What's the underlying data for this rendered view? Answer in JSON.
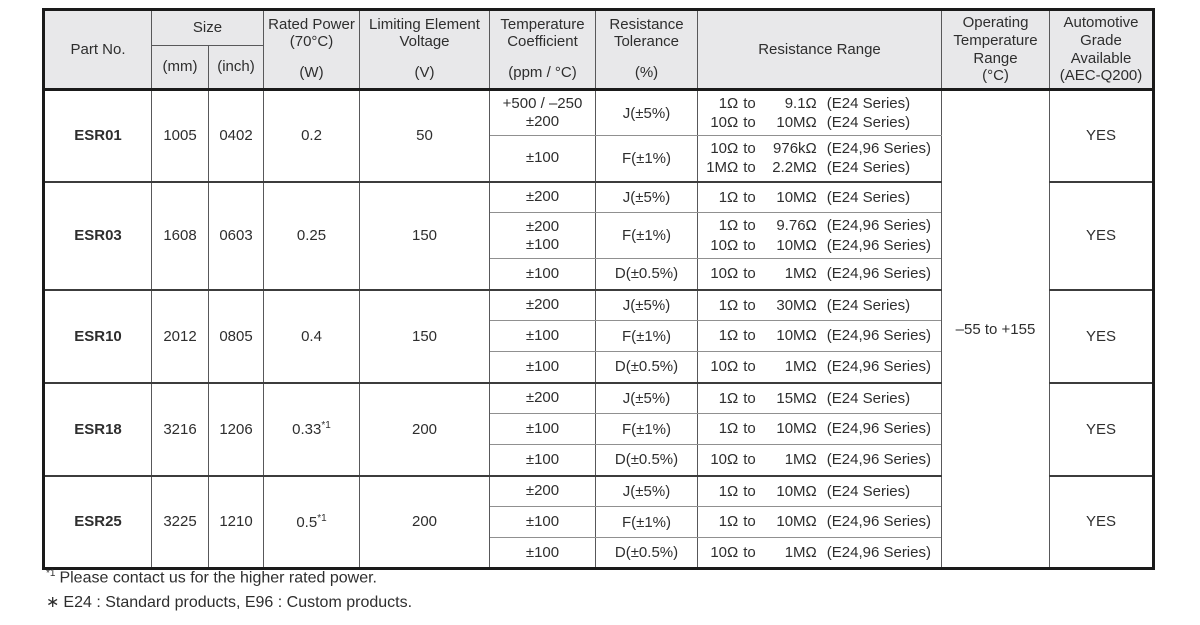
{
  "header": {
    "part_no": "Part No.",
    "size": "Size",
    "size_mm": "(mm)",
    "size_inch": "(inch)",
    "rated_power": {
      "top": [
        "Rated Power",
        "(70°C)"
      ],
      "unit": "(W)"
    },
    "voltage": {
      "top": [
        "Limiting Element",
        "Voltage"
      ],
      "unit": "(V)"
    },
    "temp_coeff": {
      "top": [
        "Temperature",
        "Coefficient"
      ],
      "unit": "(ppm / °C)"
    },
    "tolerance": {
      "top": [
        "Resistance",
        "Tolerance"
      ],
      "unit": "(%)"
    },
    "range": "Resistance Range",
    "op_temp": [
      "Operating",
      "Temperature",
      "Range",
      "(°C)"
    ],
    "automotive": [
      "Automotive",
      "Grade",
      "Available",
      "(AEC-Q200)"
    ]
  },
  "range_to_label": "to",
  "operating_temp_range": "–55 to +155",
  "parts": [
    {
      "part_no": "ESR01",
      "size_mm": "1005",
      "size_inch": "0402",
      "rated_power": "0.2",
      "rated_power_sup": "",
      "voltage": "50",
      "automotive": "YES",
      "rows": [
        {
          "tc": [
            "+500 / –250",
            "±200"
          ],
          "tol": "J(±5%)",
          "ranges": [
            {
              "min": "1Ω",
              "max": "9.1Ω",
              "series": "(E24 Series)"
            },
            {
              "min": "10Ω",
              "max": "10MΩ",
              "series": "(E24 Series)"
            }
          ]
        },
        {
          "tc": [
            "±100"
          ],
          "tol": "F(±1%)",
          "ranges": [
            {
              "min": "10Ω",
              "max": "976kΩ",
              "series": "(E24,96 Series)"
            },
            {
              "min": "1MΩ",
              "max": "2.2MΩ",
              "series": "(E24 Series)"
            }
          ]
        }
      ]
    },
    {
      "part_no": "ESR03",
      "size_mm": "1608",
      "size_inch": "0603",
      "rated_power": "0.25",
      "rated_power_sup": "",
      "voltage": "150",
      "automotive": "YES",
      "rows": [
        {
          "tc": [
            "±200"
          ],
          "tol": "J(±5%)",
          "ranges": [
            {
              "min": "1Ω",
              "max": "10MΩ",
              "series": "(E24 Series)"
            }
          ]
        },
        {
          "tc": [
            "±200",
            "±100"
          ],
          "tol": "F(±1%)",
          "ranges": [
            {
              "min": "1Ω",
              "max": "9.76Ω",
              "series": "(E24,96 Series)"
            },
            {
              "min": "10Ω",
              "max": "10MΩ",
              "series": "(E24,96 Series)"
            }
          ]
        },
        {
          "tc": [
            "±100"
          ],
          "tol": "D(±0.5%)",
          "ranges": [
            {
              "min": "10Ω",
              "max": "1MΩ",
              "series": "(E24,96 Series)"
            }
          ]
        }
      ]
    },
    {
      "part_no": "ESR10",
      "size_mm": "2012",
      "size_inch": "0805",
      "rated_power": "0.4",
      "rated_power_sup": "",
      "voltage": "150",
      "automotive": "YES",
      "rows": [
        {
          "tc": [
            "±200"
          ],
          "tol": "J(±5%)",
          "ranges": [
            {
              "min": "1Ω",
              "max": "30MΩ",
              "series": "(E24 Series)"
            }
          ]
        },
        {
          "tc": [
            "±100"
          ],
          "tol": "F(±1%)",
          "ranges": [
            {
              "min": "1Ω",
              "max": "10MΩ",
              "series": "(E24,96 Series)"
            }
          ]
        },
        {
          "tc": [
            "±100"
          ],
          "tol": "D(±0.5%)",
          "ranges": [
            {
              "min": "10Ω",
              "max": "1MΩ",
              "series": "(E24,96 Series)"
            }
          ]
        }
      ]
    },
    {
      "part_no": "ESR18",
      "size_mm": "3216",
      "size_inch": "1206",
      "rated_power": "0.33",
      "rated_power_sup": "*1",
      "voltage": "200",
      "automotive": "YES",
      "rows": [
        {
          "tc": [
            "±200"
          ],
          "tol": "J(±5%)",
          "ranges": [
            {
              "min": "1Ω",
              "max": "15MΩ",
              "series": "(E24 Series)"
            }
          ]
        },
        {
          "tc": [
            "±100"
          ],
          "tol": "F(±1%)",
          "ranges": [
            {
              "min": "1Ω",
              "max": "10MΩ",
              "series": "(E24,96 Series)"
            }
          ]
        },
        {
          "tc": [
            "±100"
          ],
          "tol": "D(±0.5%)",
          "ranges": [
            {
              "min": "10Ω",
              "max": "1MΩ",
              "series": "(E24,96 Series)"
            }
          ]
        }
      ]
    },
    {
      "part_no": "ESR25",
      "size_mm": "3225",
      "size_inch": "1210",
      "rated_power": "0.5",
      "rated_power_sup": "*1",
      "voltage": "200",
      "automotive": "YES",
      "rows": [
        {
          "tc": [
            "±200"
          ],
          "tol": "J(±5%)",
          "ranges": [
            {
              "min": "1Ω",
              "max": "10MΩ",
              "series": "(E24 Series)"
            }
          ]
        },
        {
          "tc": [
            "±100"
          ],
          "tol": "F(±1%)",
          "ranges": [
            {
              "min": "1Ω",
              "max": "10MΩ",
              "series": "(E24,96 Series)"
            }
          ]
        },
        {
          "tc": [
            "±100"
          ],
          "tol": "D(±0.5%)",
          "ranges": [
            {
              "min": "10Ω",
              "max": "1MΩ",
              "series": "(E24,96 Series)"
            }
          ]
        }
      ]
    }
  ],
  "footnotes": {
    "note1_marker": "*1",
    "note1_text": "Please contact us for the higher rated power.",
    "note2_marker": "∗",
    "note2_text": "E24 : Standard products, E96 : Custom products."
  }
}
